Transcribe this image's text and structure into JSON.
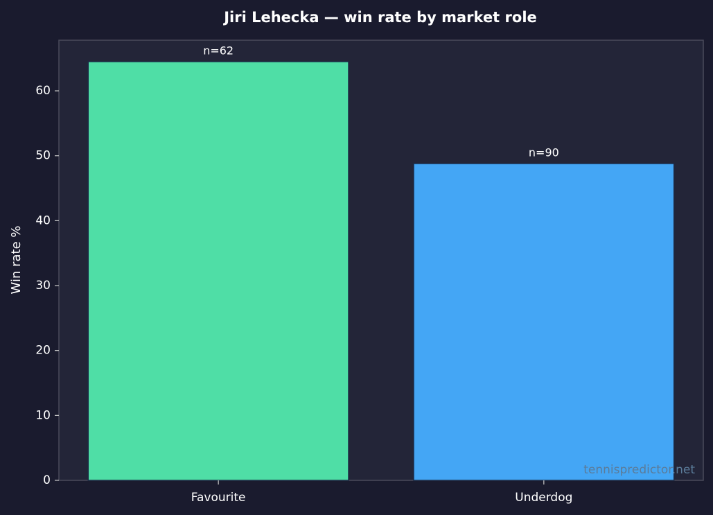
{
  "chart_data": {
    "type": "bar",
    "title": "Jiri Lehecka — win rate by market role",
    "y_label": "Win rate %",
    "categories": [
      "Favourite",
      "Underdog"
    ],
    "values": [
      64.5,
      48.8
    ],
    "colors": [
      "#4fdea6",
      "#44a6f5"
    ],
    "sample_size_labels": [
      "n=62",
      "n=90"
    ],
    "ylim": [
      0,
      67.8
    ],
    "yticks": [
      0,
      10,
      20,
      30,
      40,
      50,
      60
    ],
    "grid": false,
    "watermark": "tennispredictor.net"
  }
}
